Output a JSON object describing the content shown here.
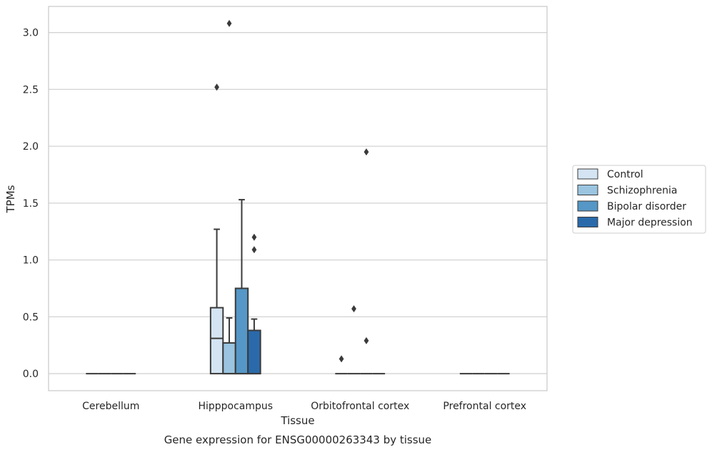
{
  "chart_data": {
    "type": "box",
    "title": "",
    "caption": "Gene expression for ENSG00000263343 by tissue",
    "xlabel": "Tissue",
    "ylabel": "TPMs",
    "ylim": [
      -0.15,
      3.23
    ],
    "yticks": [
      0.0,
      0.5,
      1.0,
      1.5,
      2.0,
      2.5,
      3.0
    ],
    "ytick_labels": [
      "0.0",
      "0.5",
      "1.0",
      "1.5",
      "2.0",
      "2.5",
      "3.0"
    ],
    "grid": "horizontal",
    "legend_position": "right",
    "categories": [
      "Cerebellum",
      "Hipppocampus",
      "Orbitofrontal cortex",
      "Prefrontal cortex"
    ],
    "series": [
      {
        "name": "Control",
        "color": "#d4e4f2",
        "boxes": [
          {
            "q1": 0,
            "median": 0,
            "q3": 0,
            "whisker_low": 0,
            "whisker_high": 0,
            "outliers": []
          },
          {
            "q1": 0,
            "median": 0.31,
            "q3": 0.58,
            "whisker_low": 0,
            "whisker_high": 1.27,
            "outliers": [
              2.52
            ]
          },
          {
            "q1": 0,
            "median": 0,
            "q3": 0,
            "whisker_low": 0,
            "whisker_high": 0,
            "outliers": [
              0.13
            ]
          },
          {
            "q1": 0,
            "median": 0,
            "q3": 0,
            "whisker_low": 0,
            "whisker_high": 0,
            "outliers": []
          }
        ]
      },
      {
        "name": "Schizophrenia",
        "color": "#9ac4df",
        "boxes": [
          {
            "q1": 0,
            "median": 0,
            "q3": 0,
            "whisker_low": 0,
            "whisker_high": 0,
            "outliers": []
          },
          {
            "q1": 0,
            "median": 0,
            "q3": 0.27,
            "whisker_low": 0,
            "whisker_high": 0.49,
            "outliers": [
              3.08
            ]
          },
          {
            "q1": 0,
            "median": 0,
            "q3": 0,
            "whisker_low": 0,
            "whisker_high": 0,
            "outliers": [
              0.57
            ]
          },
          {
            "q1": 0,
            "median": 0,
            "q3": 0,
            "whisker_low": 0,
            "whisker_high": 0,
            "outliers": []
          }
        ]
      },
      {
        "name": "Bipolar disorder",
        "color": "#5597c6",
        "boxes": [
          {
            "q1": 0,
            "median": 0,
            "q3": 0,
            "whisker_low": 0,
            "whisker_high": 0,
            "outliers": []
          },
          {
            "q1": 0,
            "median": 0,
            "q3": 0.75,
            "whisker_low": 0,
            "whisker_high": 1.53,
            "outliers": []
          },
          {
            "q1": 0,
            "median": 0,
            "q3": 0,
            "whisker_low": 0,
            "whisker_high": 0,
            "outliers": [
              1.95,
              0.29
            ]
          },
          {
            "q1": 0,
            "median": 0,
            "q3": 0,
            "whisker_low": 0,
            "whisker_high": 0,
            "outliers": []
          }
        ]
      },
      {
        "name": "Major depression",
        "color": "#2a6aaa",
        "boxes": [
          {
            "q1": 0,
            "median": 0,
            "q3": 0,
            "whisker_low": 0,
            "whisker_high": 0,
            "outliers": []
          },
          {
            "q1": 0,
            "median": 0,
            "q3": 0.38,
            "whisker_low": 0,
            "whisker_high": 0.48,
            "outliers": [
              1.2,
              1.09
            ]
          },
          {
            "q1": 0,
            "median": 0,
            "q3": 0,
            "whisker_low": 0,
            "whisker_high": 0,
            "outliers": []
          },
          {
            "q1": 0,
            "median": 0,
            "q3": 0,
            "whisker_low": 0,
            "whisker_high": 0,
            "outliers": []
          }
        ]
      }
    ]
  }
}
